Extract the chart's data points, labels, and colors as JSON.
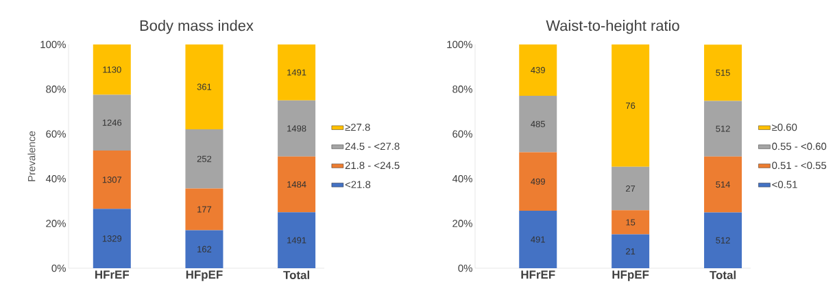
{
  "chart_data": [
    {
      "type": "bar",
      "title": "Body mass index",
      "ylabel": "Prevalence",
      "categories": [
        "HFrEF",
        "HFpEF",
        "Total"
      ],
      "stacked": true,
      "legend": "right",
      "ylim": [
        0,
        100
      ],
      "yticks": [
        {
          "value": 0,
          "label": "0%"
        },
        {
          "value": 20,
          "label": "20%"
        },
        {
          "value": 40,
          "label": "40%"
        },
        {
          "value": 60,
          "label": "60%"
        },
        {
          "value": 80,
          "label": "80%"
        },
        {
          "value": 100,
          "label": "100%"
        }
      ],
      "series": [
        {
          "name": "<21.8",
          "color": "#4472c4",
          "values": [
            26.5,
            17.0,
            25.0
          ]
        },
        {
          "name": "21.8 - <24.5",
          "color": "#ed7d31",
          "values": [
            26.1,
            18.6,
            24.9
          ]
        },
        {
          "name": "24.5 - <27.8",
          "color": "#a5a5a5",
          "values": [
            24.9,
            26.5,
            25.1
          ]
        },
        {
          "name": "≥27.8",
          "color": "#ffc000",
          "values": [
            22.5,
            37.9,
            25.0
          ]
        }
      ],
      "annotations": [
        "1329",
        "1307",
        "1246",
        "1130",
        "162",
        "177",
        "252",
        "361",
        "1491",
        "1484",
        "1498",
        "1491"
      ]
    },
    {
      "type": "bar",
      "title": "Waist-to-height ratio",
      "categories": [
        "HFrEF",
        "HFpEF",
        "Total"
      ],
      "stacked": true,
      "legend": "right",
      "ylim": [
        0,
        100
      ],
      "yticks": [
        {
          "value": 0,
          "label": "0%"
        },
        {
          "value": 20,
          "label": "20%"
        },
        {
          "value": 40,
          "label": "40%"
        },
        {
          "value": 60,
          "label": "60%"
        },
        {
          "value": 80,
          "label": "80%"
        },
        {
          "value": 100,
          "label": "100%"
        }
      ],
      "series": [
        {
          "name": "<0.51",
          "color": "#4472c4",
          "values": [
            25.7,
            15.1,
            24.9
          ]
        },
        {
          "name": "0.51 - <0.55",
          "color": "#ed7d31",
          "values": [
            26.1,
            10.8,
            25.0
          ]
        },
        {
          "name": "0.55 - <0.60",
          "color": "#a5a5a5",
          "values": [
            25.3,
            19.4,
            24.9
          ]
        },
        {
          "name": "≥0.60",
          "color": "#ffc000",
          "values": [
            22.9,
            54.7,
            25.1
          ]
        }
      ],
      "annotations": [
        "491",
        "499",
        "485",
        "439",
        "21",
        "15",
        "27",
        "76",
        "512",
        "514",
        "512",
        "515"
      ]
    }
  ]
}
